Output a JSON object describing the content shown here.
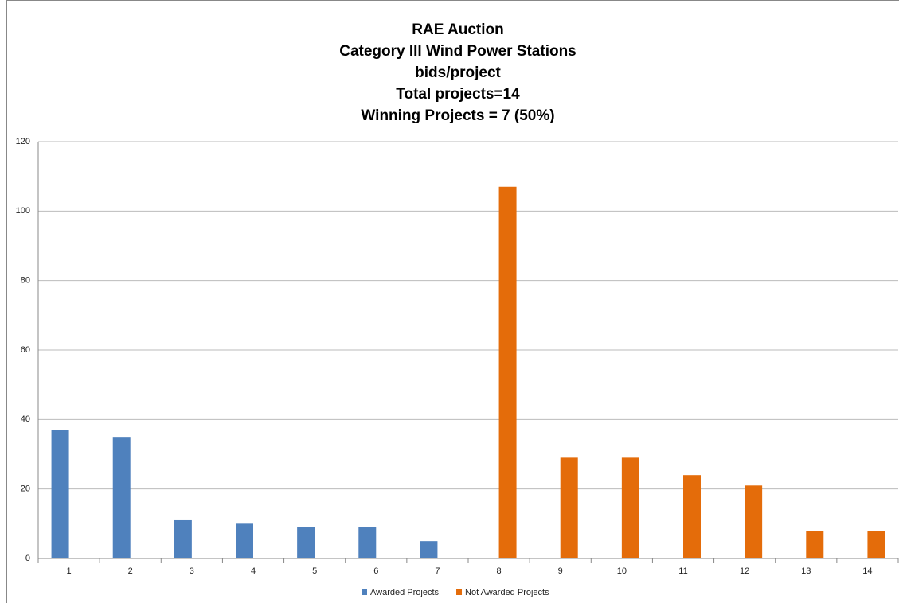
{
  "chart_data": {
    "type": "bar",
    "title": [
      "RAE Auction",
      "Category III Wind Power Stations",
      "bids/project",
      "Total  projects=14",
      "Winning Projects = 7 (50%)"
    ],
    "categories": [
      "1",
      "2",
      "3",
      "4",
      "5",
      "6",
      "7",
      "8",
      "9",
      "10",
      "11",
      "12",
      "13",
      "14"
    ],
    "series": [
      {
        "name": "Awarded Projects",
        "color": "#4f81bd",
        "values": [
          37,
          35,
          11,
          10,
          9,
          9,
          5,
          null,
          null,
          null,
          null,
          null,
          null,
          null
        ]
      },
      {
        "name": "Not Awarded Projects",
        "color": "#e46c0a",
        "values": [
          null,
          null,
          null,
          null,
          null,
          null,
          null,
          107,
          29,
          29,
          24,
          21,
          8,
          8
        ]
      }
    ],
    "ylim": [
      0,
      120
    ],
    "yticks": [
      0,
      20,
      40,
      60,
      80,
      100,
      120
    ],
    "grid": true,
    "legend": "bottom"
  }
}
